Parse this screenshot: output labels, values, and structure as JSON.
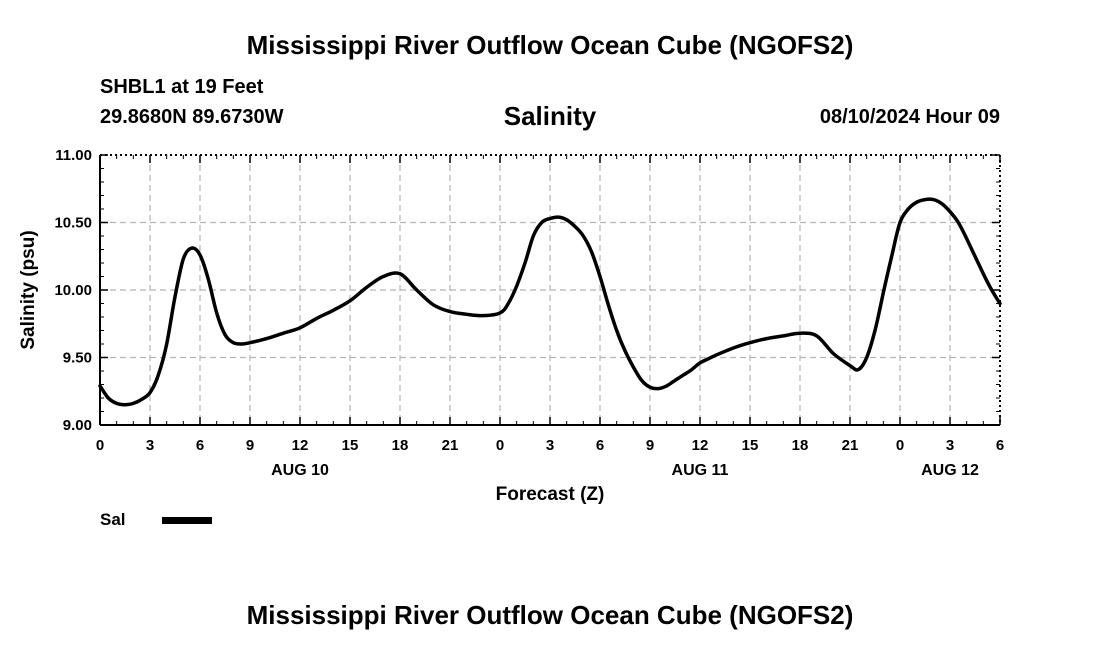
{
  "header": {
    "title": "Mississippi River Outflow Ocean Cube (NGOFS2)",
    "station": "SHBL1 at 19 Feet",
    "coords": "29.8680N  89.6730W",
    "subtitle": "Salinity",
    "datetime": "08/10/2024 Hour 09"
  },
  "footer": {
    "title": "Mississippi River Outflow Ocean Cube (NGOFS2)"
  },
  "legend": {
    "label": "Sal"
  },
  "colors": {
    "line": "#000000",
    "grid": "#b4b4b4",
    "axis": "#000000"
  },
  "chart_data": {
    "type": "line",
    "title": "Salinity",
    "xlabel": "Forecast (Z)",
    "ylabel": "Salinity (psu)",
    "xlim": [
      0,
      54
    ],
    "ylim": [
      9.0,
      11.0
    ],
    "x_ticks": [
      0,
      3,
      6,
      9,
      12,
      15,
      18,
      21,
      24,
      27,
      30,
      33,
      36,
      39,
      42,
      45,
      48,
      51,
      54
    ],
    "x_tick_labels": [
      "0",
      "3",
      "6",
      "9",
      "12",
      "15",
      "18",
      "21",
      "0",
      "3",
      "6",
      "9",
      "12",
      "15",
      "18",
      "21",
      "0",
      "3",
      "6"
    ],
    "day_labels": [
      {
        "x": 12,
        "label": "AUG 10"
      },
      {
        "x": 36,
        "label": "AUG 11"
      },
      {
        "x": 51,
        "label": "AUG 12"
      }
    ],
    "y_ticks": [
      9.0,
      9.5,
      10.0,
      10.5,
      11.0
    ],
    "y_tick_labels": [
      "9.00",
      "9.50",
      "10.00",
      "10.50",
      "11.00"
    ],
    "grid": true,
    "legend_position": "bottom-left",
    "series": [
      {
        "name": "Sal",
        "x": [
          0,
          0.5,
          1,
          1.5,
          2,
          2.5,
          3,
          3.5,
          4,
          4.5,
          5,
          5.5,
          6,
          6.5,
          7,
          7.5,
          8,
          8.5,
          9,
          10,
          11,
          12,
          13,
          14,
          15,
          16,
          17,
          18,
          19,
          20,
          21,
          22,
          23,
          24,
          24.5,
          25,
          25.5,
          26,
          26.5,
          27,
          27.5,
          28,
          28.5,
          29,
          29.5,
          30,
          30.5,
          31,
          31.5,
          32,
          32.5,
          33,
          33.5,
          34,
          34.5,
          35,
          35.5,
          36,
          36.5,
          37,
          38,
          39,
          40,
          41,
          42,
          43,
          44,
          45,
          45.5,
          46,
          46.5,
          47,
          47.5,
          48,
          48.5,
          49,
          49.5,
          50,
          50.5,
          51,
          51.5,
          52,
          52.5,
          53,
          53.5,
          54
        ],
        "values": [
          9.29,
          9.2,
          9.16,
          9.15,
          9.16,
          9.19,
          9.24,
          9.37,
          9.6,
          9.95,
          10.23,
          10.31,
          10.26,
          10.08,
          9.83,
          9.67,
          9.61,
          9.6,
          9.61,
          9.64,
          9.68,
          9.72,
          9.79,
          9.85,
          9.92,
          10.02,
          10.1,
          10.12,
          10.0,
          9.89,
          9.84,
          9.82,
          9.81,
          9.83,
          9.9,
          10.03,
          10.2,
          10.4,
          10.5,
          10.53,
          10.54,
          10.52,
          10.47,
          10.4,
          10.28,
          10.1,
          9.89,
          9.7,
          9.55,
          9.43,
          9.33,
          9.28,
          9.27,
          9.29,
          9.33,
          9.37,
          9.41,
          9.46,
          9.49,
          9.52,
          9.57,
          9.61,
          9.64,
          9.66,
          9.68,
          9.66,
          9.53,
          9.44,
          9.41,
          9.5,
          9.7,
          9.98,
          10.25,
          10.5,
          10.6,
          10.65,
          10.67,
          10.67,
          10.64,
          10.58,
          10.5,
          10.38,
          10.25,
          10.12,
          10.0,
          9.9
        ]
      }
    ]
  }
}
